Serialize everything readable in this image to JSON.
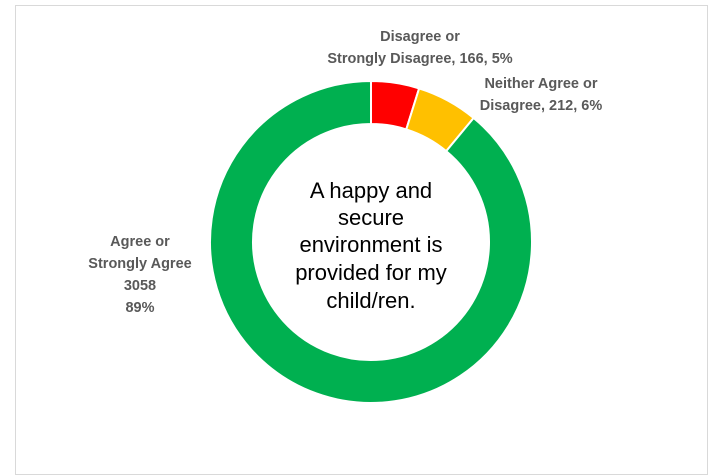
{
  "chart_data": {
    "type": "pie",
    "style": "doughnut",
    "center_text": [
      "A happy and",
      "secure",
      "environment is",
      "provided for my",
      "child/ren."
    ],
    "slices": [
      {
        "name": "Disagree or Strongly Disagree",
        "value": 166,
        "percent": 5,
        "color": "#ff0000",
        "label_lines": [
          "Disagree or",
          "Strongly Disagree, 166, 5%"
        ]
      },
      {
        "name": "Neither Agree or Disagree",
        "value": 212,
        "percent": 6,
        "color": "#ffc000",
        "label_lines": [
          "Neither Agree or",
          "Disagree, 212, 6%"
        ]
      },
      {
        "name": "Agree or Strongly Agree",
        "value": 3058,
        "percent": 89,
        "color": "#00b050",
        "label_lines": [
          "Agree or",
          "Strongly Agree",
          "3058",
          "89%"
        ]
      }
    ]
  }
}
